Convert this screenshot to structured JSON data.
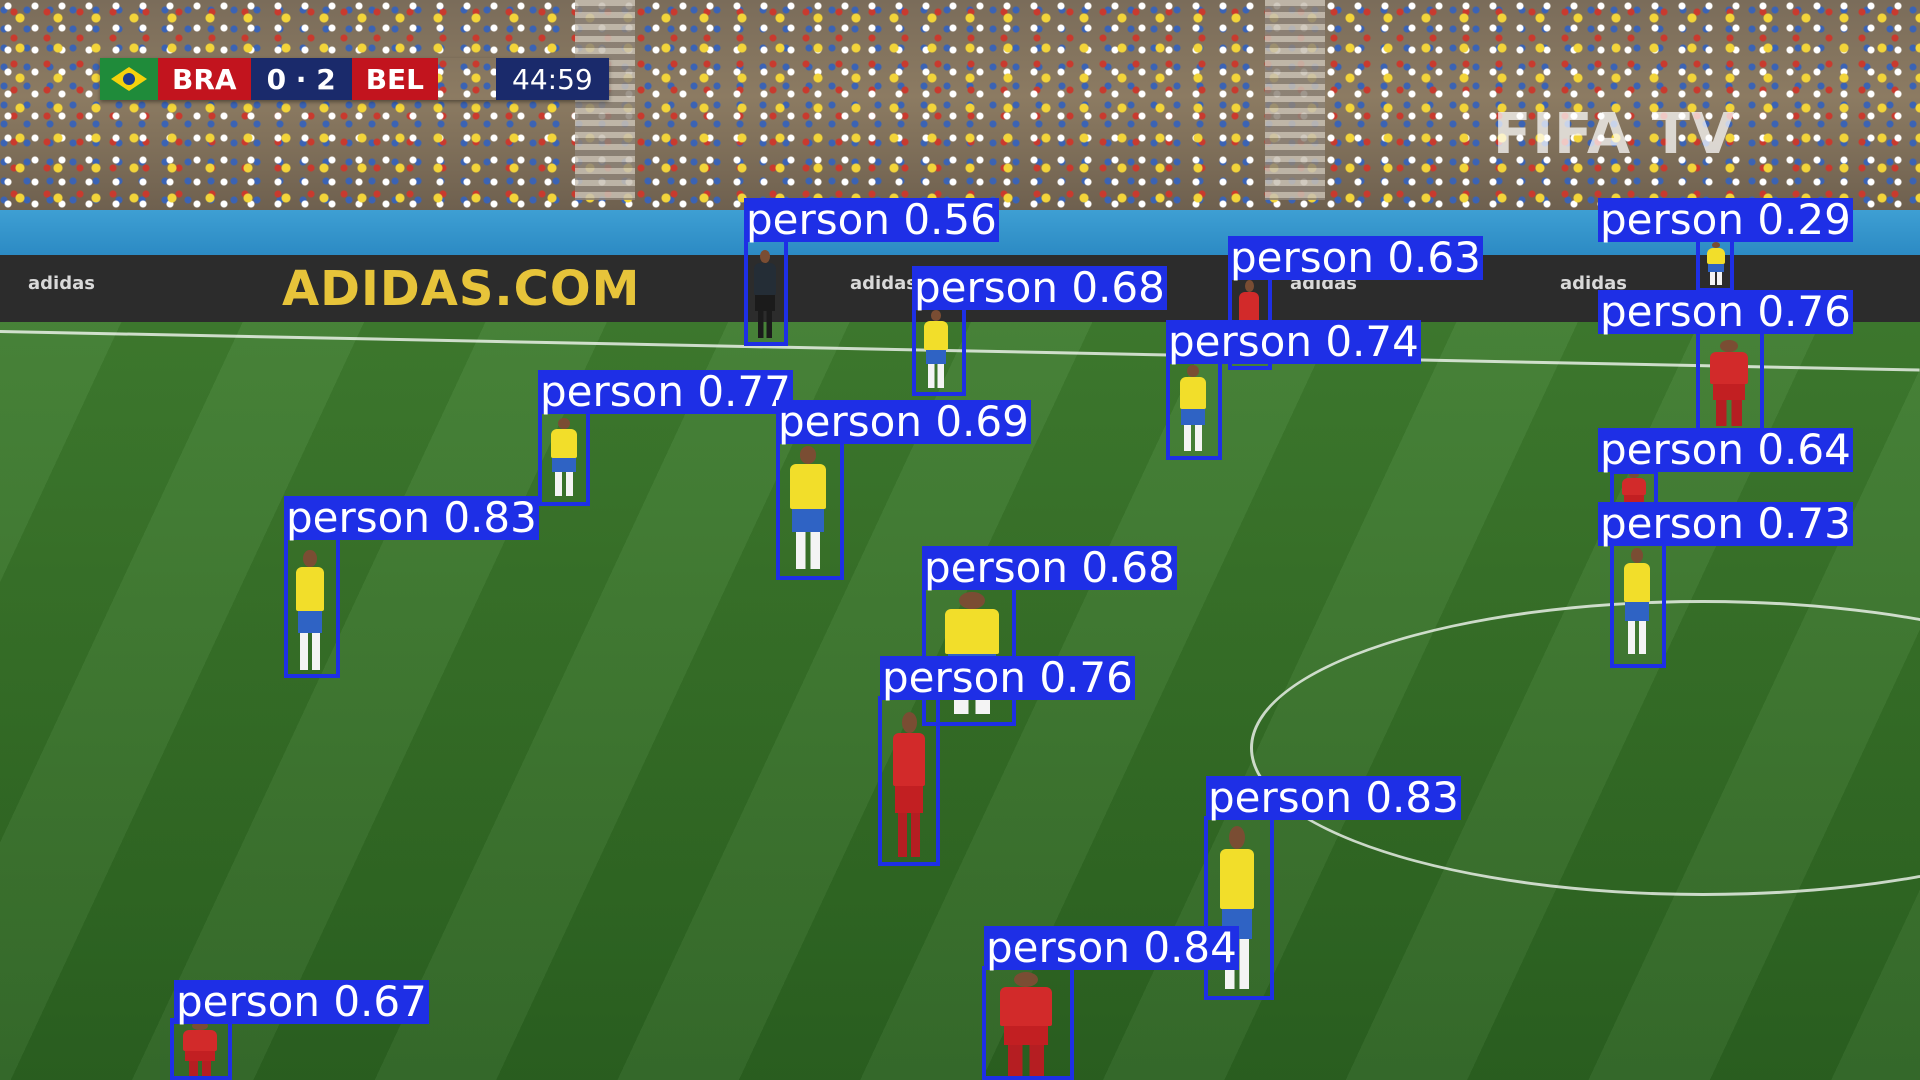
{
  "scoreboard": {
    "home_team": "BRA",
    "score": "0 · 2",
    "away_team": "BEL",
    "clock": "44:59",
    "home_colors": [
      "#1f8b3a",
      "#f5d20c",
      "#1b3d8f"
    ],
    "away_colors": [
      "#000000",
      "#f5d20c",
      "#d21f2a"
    ]
  },
  "broadcast": {
    "watermark": "FIFA TV",
    "ad_main": "ADIDAS.COM",
    "ad_small": "adidas"
  },
  "overlay_color": "#1e2fe6",
  "detections": [
    {
      "label": "person",
      "score": "0.56",
      "team": "referee"
    },
    {
      "label": "person",
      "score": "0.68",
      "team": "brazil"
    },
    {
      "label": "person",
      "score": "0.63",
      "team": "belgium"
    },
    {
      "label": "person",
      "score": "0.74",
      "team": "brazil"
    },
    {
      "label": "person",
      "score": "0.29",
      "team": "brazil"
    },
    {
      "label": "person",
      "score": "0.76",
      "team": "belgium"
    },
    {
      "label": "person",
      "score": "0.77",
      "team": "brazil"
    },
    {
      "label": "person",
      "score": "0.69",
      "team": "brazil"
    },
    {
      "label": "person",
      "score": "0.64",
      "team": "belgium"
    },
    {
      "label": "person",
      "score": "0.73",
      "team": "brazil"
    },
    {
      "label": "person",
      "score": "0.83",
      "team": "brazil"
    },
    {
      "label": "person",
      "score": "0.68",
      "team": "brazil"
    },
    {
      "label": "person",
      "score": "0.76",
      "team": "belgium"
    },
    {
      "label": "person",
      "score": "0.83",
      "team": "brazil"
    },
    {
      "label": "person",
      "score": "0.84",
      "team": "belgium"
    },
    {
      "label": "person",
      "score": "0.67",
      "team": "belgium"
    }
  ]
}
